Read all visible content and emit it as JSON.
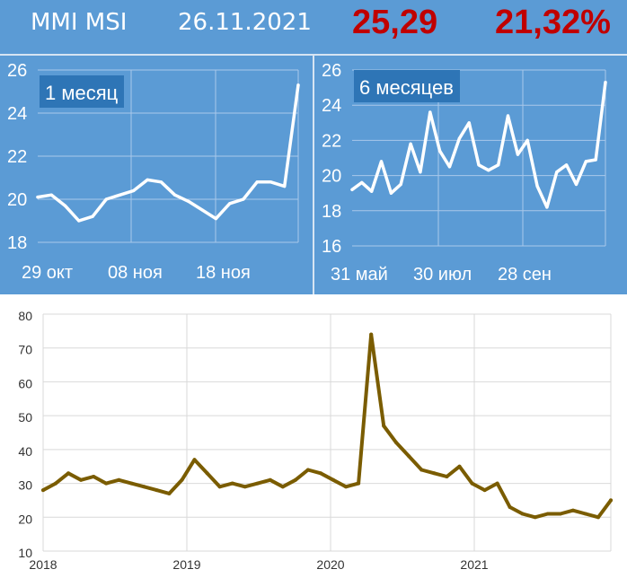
{
  "header": {
    "title": "MMI MSI",
    "date": "26.11.2021",
    "value": "25,29",
    "change": "21,32%"
  },
  "colors": {
    "panel_bg": "#5b9bd5",
    "mini_line": "#ffffff",
    "badge_bg": "#2e75b6",
    "highlight": "#c00000",
    "long_line": "#7a5c00",
    "grid": "#d9d9d9"
  },
  "chart_data": [
    {
      "type": "line",
      "badge": "1 месяц",
      "title": "",
      "xlabel": "",
      "ylabel": "",
      "ylim": [
        18,
        26
      ],
      "yticks": [
        "18",
        "20",
        "22",
        "24",
        "26"
      ],
      "xticks": [
        "29 окт",
        "08 ноя",
        "18 ноя"
      ],
      "grid": true,
      "series": [
        {
          "x": [
            "29 окт",
            "01 ноя",
            "02 ноя",
            "03 ноя",
            "05 ноя",
            "08 ноя",
            "09 ноя",
            "10 ноя",
            "11 ноя",
            "12 ноя",
            "15 ноя",
            "16 ноя",
            "17 ноя",
            "18 ноя",
            "19 ноя",
            "22 ноя",
            "23 ноя",
            "24 ноя",
            "25 ноя",
            "26 ноя"
          ],
          "values": [
            20.1,
            20.2,
            19.7,
            19.0,
            19.2,
            20.0,
            20.2,
            20.4,
            20.9,
            20.8,
            20.2,
            19.9,
            19.5,
            19.1,
            19.8,
            20.0,
            20.8,
            20.8,
            20.6,
            25.3
          ]
        }
      ]
    },
    {
      "type": "line",
      "badge": "6 месяцев",
      "title": "",
      "xlabel": "",
      "ylabel": "",
      "ylim": [
        16,
        26
      ],
      "yticks": [
        "16",
        "18",
        "20",
        "22",
        "24",
        "26"
      ],
      "xticks": [
        "31 май",
        "30 июл",
        "28 сен"
      ],
      "grid": true,
      "series": [
        {
          "x": [
            "31.05",
            "07.06",
            "14.06",
            "21.06",
            "28.06",
            "05.07",
            "12.07",
            "19.07",
            "26.07",
            "02.08",
            "09.08",
            "16.08",
            "23.08",
            "30.08",
            "06.09",
            "13.09",
            "20.09",
            "27.09",
            "04.10",
            "11.10",
            "18.10",
            "25.10",
            "01.11",
            "08.11",
            "15.11",
            "22.11",
            "26.11"
          ],
          "values": [
            19.2,
            19.6,
            19.1,
            20.8,
            19.0,
            19.5,
            21.8,
            20.2,
            23.6,
            21.4,
            20.5,
            22.1,
            23.0,
            20.6,
            20.3,
            20.6,
            23.4,
            21.2,
            22.0,
            19.4,
            18.2,
            20.2,
            20.6,
            19.5,
            20.8,
            20.9,
            25.3
          ]
        }
      ]
    },
    {
      "type": "line",
      "title": "",
      "xlabel": "",
      "ylabel": "",
      "ylim": [
        10,
        80
      ],
      "yticks": [
        "10",
        "20",
        "30",
        "40",
        "50",
        "60",
        "70",
        "80"
      ],
      "xticks": [
        "2018",
        "2019",
        "2020",
        "2021"
      ],
      "grid": true,
      "series": [
        {
          "x": [
            "2018-02",
            "2018-03",
            "2018-04",
            "2018-05",
            "2018-06",
            "2018-07",
            "2018-08",
            "2018-09",
            "2018-10",
            "2018-11",
            "2018-12",
            "2019-01",
            "2019-02",
            "2019-03",
            "2019-04",
            "2019-05",
            "2019-06",
            "2019-07",
            "2019-08",
            "2019-09",
            "2019-10",
            "2019-11",
            "2019-12",
            "2020-01",
            "2020-02",
            "2020-03",
            "2020-04",
            "2020-05",
            "2020-06",
            "2020-07",
            "2020-08",
            "2020-09",
            "2020-10",
            "2020-11",
            "2020-12",
            "2021-01",
            "2021-02",
            "2021-03",
            "2021-04",
            "2021-05",
            "2021-06",
            "2021-07",
            "2021-08",
            "2021-09",
            "2021-10",
            "2021-11"
          ],
          "values": [
            28,
            30,
            33,
            31,
            32,
            30,
            31,
            30,
            29,
            28,
            27,
            31,
            37,
            33,
            29,
            30,
            29,
            30,
            31,
            29,
            31,
            34,
            33,
            31,
            29,
            30,
            74,
            47,
            42,
            38,
            34,
            33,
            32,
            35,
            30,
            28,
            30,
            23,
            21,
            20,
            21,
            21,
            22,
            21,
            20,
            25
          ]
        }
      ]
    }
  ]
}
